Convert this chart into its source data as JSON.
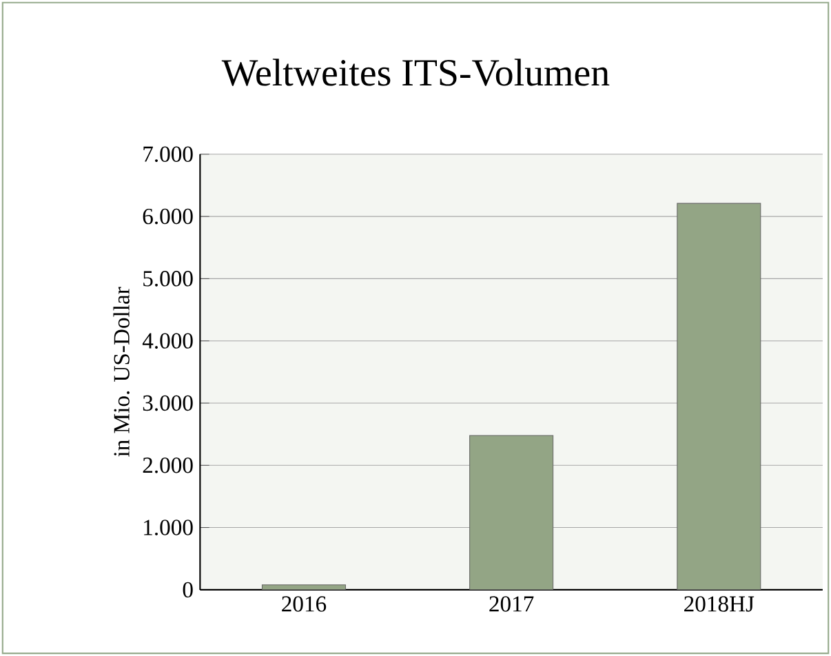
{
  "chart_data": {
    "type": "bar",
    "title": "Weltweites ITS-Volumen",
    "ylabel": "in Mio. US-Dollar",
    "categories": [
      "2016",
      "2017",
      "2018HJ"
    ],
    "values": [
      80,
      2480,
      6210
    ],
    "color": "#93a585",
    "ylim": [
      0,
      7000
    ],
    "yticks": [
      {
        "value": 0,
        "label": "0"
      },
      {
        "value": 1000,
        "label": "1.000"
      },
      {
        "value": 2000,
        "label": "2.000"
      },
      {
        "value": 3000,
        "label": "3.000"
      },
      {
        "value": 4000,
        "label": "4.000"
      },
      {
        "value": 5000,
        "label": "5.000"
      },
      {
        "value": 6000,
        "label": "6.000"
      },
      {
        "value": 7000,
        "label": "7.000"
      }
    ],
    "grid": "y"
  }
}
